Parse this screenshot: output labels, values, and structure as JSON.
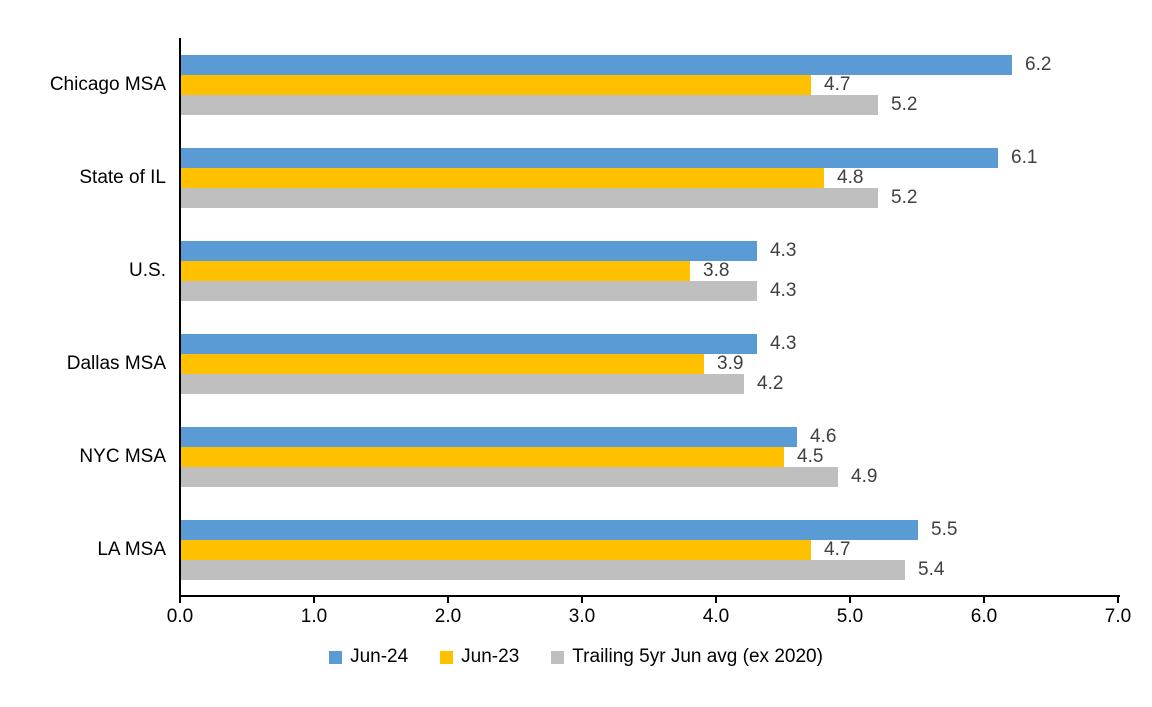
{
  "chart_data": {
    "type": "bar",
    "orientation": "horizontal",
    "title": "",
    "xlabel": "",
    "ylabel": "",
    "categories": [
      "Chicago MSA",
      "State of IL",
      "U.S.",
      "Dallas MSA",
      "NYC MSA",
      "LA MSA"
    ],
    "series": [
      {
        "name": "Jun-24",
        "color": "#5B9BD5",
        "values": [
          6.2,
          6.1,
          4.3,
          4.3,
          4.6,
          5.5
        ]
      },
      {
        "name": "Jun-23",
        "color": "#FFC000",
        "values": [
          4.7,
          4.8,
          3.8,
          3.9,
          4.5,
          4.7
        ]
      },
      {
        "name": "Trailing 5yr Jun avg (ex 2020)",
        "color": "#BFBFBF",
        "values": [
          5.2,
          5.2,
          4.3,
          4.2,
          4.9,
          5.4
        ]
      }
    ],
    "xlim": [
      0.0,
      7.0
    ],
    "x_ticks": [
      "0.0",
      "1.0",
      "2.0",
      "3.0",
      "4.0",
      "5.0",
      "6.0",
      "7.0"
    ],
    "x_tick_values": [
      0,
      1,
      2,
      3,
      4,
      5,
      6,
      7
    ],
    "value_label_format": "0.1f",
    "grid": false,
    "legend_position": "bottom",
    "colors": {
      "axis": "#000000",
      "category_label": "#000000",
      "tick_label": "#000000",
      "value_label": "#404040",
      "background": "#FFFFFF"
    }
  }
}
